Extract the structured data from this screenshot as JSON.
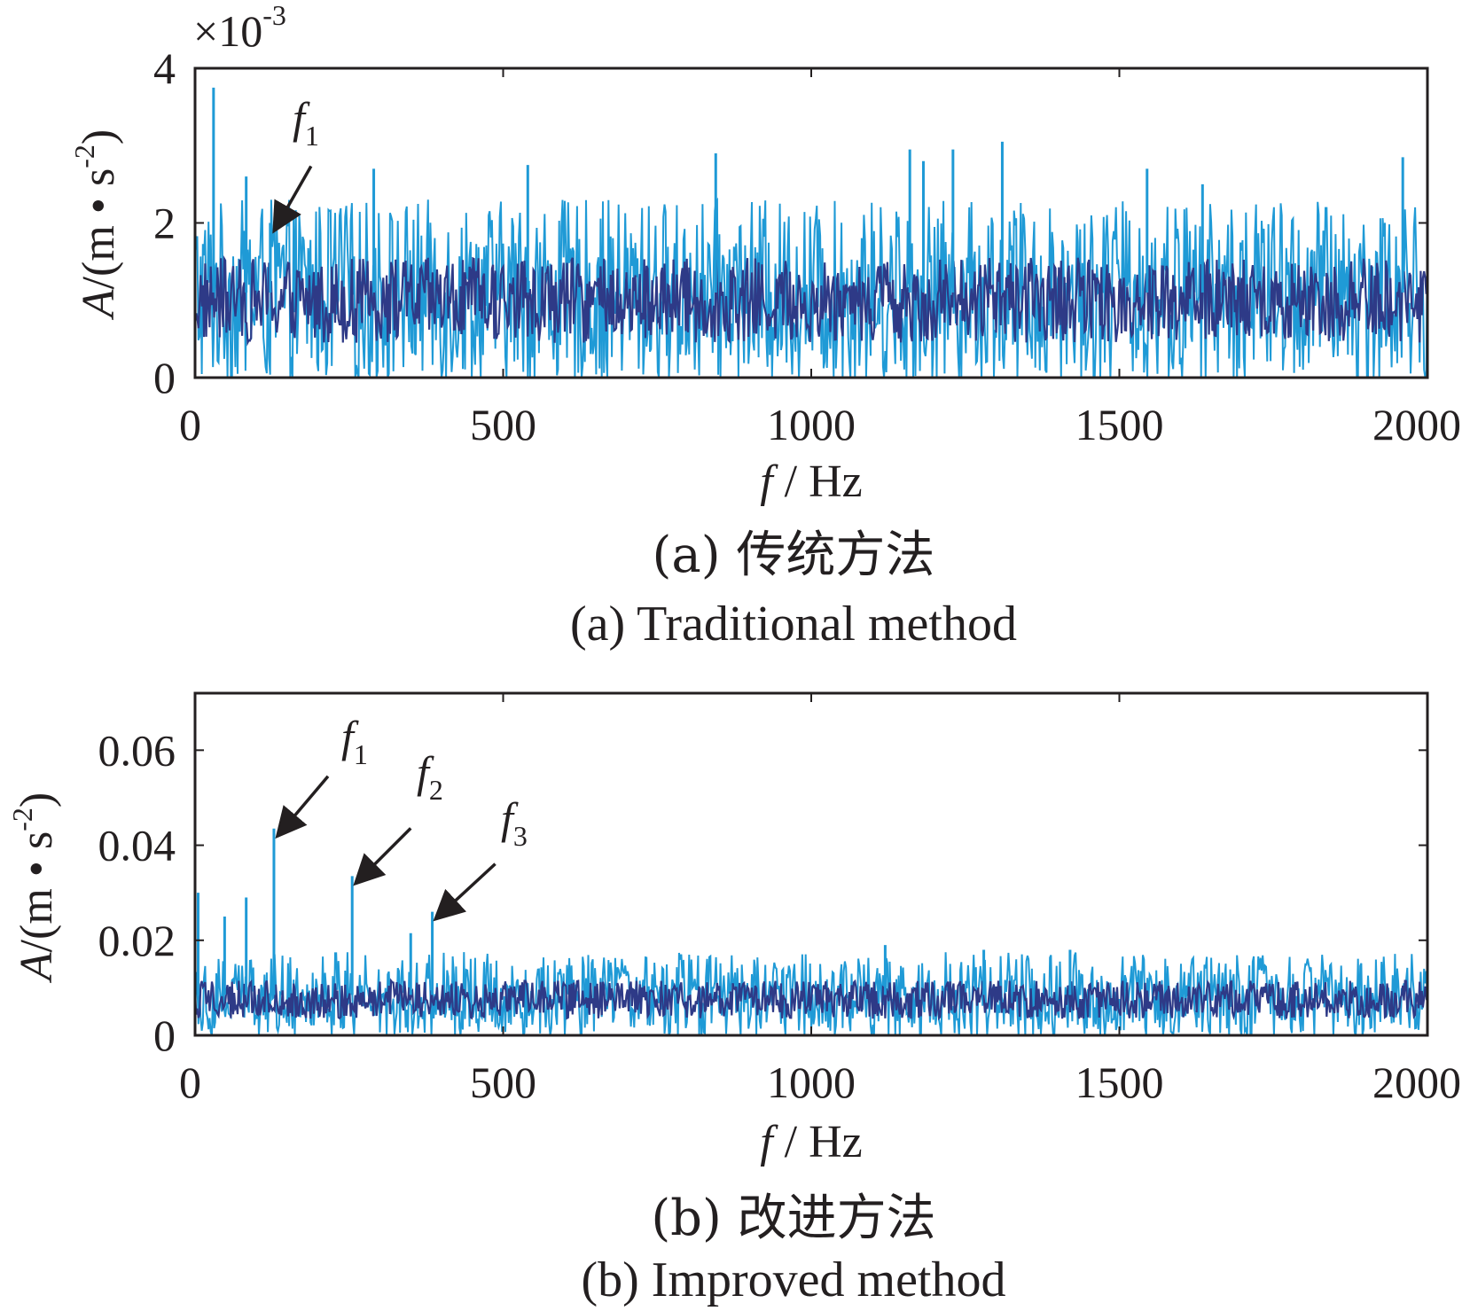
{
  "colors": {
    "light_series": "#1f9ad6",
    "dark_series": "#2e3a87",
    "axes": "#231f20"
  },
  "chart_data": [
    {
      "id": "a",
      "type": "line",
      "caption_cn": "(a) 传统方法",
      "caption_en": "(a) Traditional method",
      "xlabel_var": "f",
      "xlabel_unit": " / Hz",
      "ylabel_var": "A",
      "ylabel_unit": "/(m • s",
      "ylabel_exp": "-2",
      "ylabel_close": ")",
      "y_multiplier_base": "×10",
      "y_multiplier_exp": "-3",
      "xlim": [
        0,
        2000
      ],
      "ylim": [
        0,
        4
      ],
      "xticks": [
        0,
        500,
        1000,
        1500,
        2000
      ],
      "yticks": [
        0,
        2,
        4
      ],
      "xtick_labels": [
        "0",
        "500",
        "1000",
        "1500",
        "2000"
      ],
      "ytick_labels": [
        "0",
        "2",
        "4"
      ],
      "grid": false,
      "noise": {
        "light_mean": 1.1,
        "light_amp": 1.2,
        "dark_mean": 1.0,
        "dark_amp": 0.55,
        "max": 4
      },
      "peaks": [
        {
          "x": 30,
          "y": 3.75
        },
        {
          "x": 83,
          "y": 2.6
        },
        {
          "x": 122,
          "y": 2.0
        },
        {
          "x": 290,
          "y": 2.7
        },
        {
          "x": 540,
          "y": 2.75
        },
        {
          "x": 845,
          "y": 2.9
        },
        {
          "x": 1160,
          "y": 2.95
        },
        {
          "x": 1182,
          "y": 2.8
        },
        {
          "x": 1230,
          "y": 2.95
        },
        {
          "x": 1310,
          "y": 3.05
        },
        {
          "x": 1545,
          "y": 2.7
        },
        {
          "x": 1635,
          "y": 2.5
        },
        {
          "x": 1960,
          "y": 2.85
        }
      ],
      "annotations": [
        {
          "label": "f",
          "sub": "1",
          "x": 122,
          "y": 2.0
        }
      ]
    },
    {
      "id": "b",
      "type": "line",
      "caption_cn": "(b) 改进方法",
      "caption_en": "(b) Improved method",
      "xlabel_var": "f",
      "xlabel_unit": " / Hz",
      "ylabel_var": "A",
      "ylabel_unit": "/(m • s",
      "ylabel_exp": "-2",
      "ylabel_close": ")",
      "xlim": [
        0,
        2000
      ],
      "ylim": [
        0,
        0.072
      ],
      "xticks": [
        0,
        500,
        1000,
        1500,
        2000
      ],
      "yticks": [
        0,
        0.02,
        0.04,
        0.06
      ],
      "xtick_labels": [
        "0",
        "500",
        "1000",
        "1500",
        "2000"
      ],
      "ytick_labels": [
        "0",
        "0.02",
        "0.04",
        "0.06"
      ],
      "grid": false,
      "noise": {
        "light_mean": 0.0085,
        "light_amp": 0.009,
        "dark_mean": 0.0075,
        "dark_amp": 0.004,
        "max": 0.072
      },
      "peaks": [
        {
          "x": 5,
          "y": 0.03
        },
        {
          "x": 48,
          "y": 0.025
        },
        {
          "x": 83,
          "y": 0.029
        },
        {
          "x": 128,
          "y": 0.0435
        },
        {
          "x": 255,
          "y": 0.0335
        },
        {
          "x": 350,
          "y": 0.0215
        },
        {
          "x": 385,
          "y": 0.026
        },
        {
          "x": 1120,
          "y": 0.019
        },
        {
          "x": 1280,
          "y": 0.018
        },
        {
          "x": 1420,
          "y": 0.018
        }
      ],
      "annotations": [
        {
          "label": "f",
          "sub": "1",
          "x": 128,
          "y": 0.0435
        },
        {
          "label": "f",
          "sub": "2",
          "x": 255,
          "y": 0.0335
        },
        {
          "label": "f",
          "sub": "3",
          "x": 385,
          "y": 0.026
        }
      ]
    }
  ]
}
